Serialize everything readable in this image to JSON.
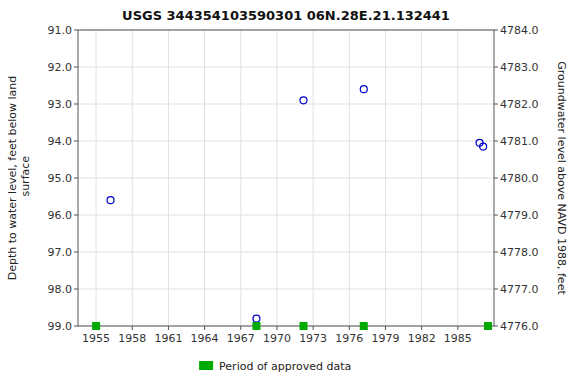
{
  "chart_data": {
    "type": "scatter",
    "title": "USGS 344354103590301 06N.28E.21.132441",
    "y_label": "Depth to water level, feet below land\n surface",
    "y2_label": "Groundwater level above NAVD 1988, feet",
    "xlim": [
      1953.5,
      1988.0
    ],
    "xticks": [
      1955,
      1958,
      1961,
      1964,
      1967,
      1970,
      1973,
      1976,
      1979,
      1982,
      1985
    ],
    "ylim": [
      99.0,
      91.0
    ],
    "yticks": [
      {
        "value": 91.0,
        "label": "91.0"
      },
      {
        "value": 92.0,
        "label": "92.0"
      },
      {
        "value": 93.0,
        "label": "93.0"
      },
      {
        "value": 94.0,
        "label": "94.0"
      },
      {
        "value": 95.0,
        "label": "95.0"
      },
      {
        "value": 96.0,
        "label": "96.0"
      },
      {
        "value": 97.0,
        "label": "97.0"
      },
      {
        "value": 98.0,
        "label": "98.0"
      },
      {
        "value": 99.0,
        "label": "99.0"
      }
    ],
    "y2lim": [
      4776.0,
      4784.0
    ],
    "y2ticks": [
      {
        "value": 4784.0,
        "label": "4784.0"
      },
      {
        "value": 4783.0,
        "label": "4783.0"
      },
      {
        "value": 4782.0,
        "label": "4782.0"
      },
      {
        "value": 4781.0,
        "label": "4781.0"
      },
      {
        "value": 4780.0,
        "label": "4780.0"
      },
      {
        "value": 4779.0,
        "label": "4779.0"
      },
      {
        "value": 4778.0,
        "label": "4778.0"
      },
      {
        "value": 4777.0,
        "label": "4777.0"
      },
      {
        "value": 4776.0,
        "label": "4776.0"
      }
    ],
    "grid": true,
    "legend": "bottom",
    "series": [
      {
        "color": "#0000cc",
        "marker": "circle",
        "x": [
          1956.2,
          1968.3,
          1972.2,
          1977.2,
          1986.8,
          1987.1
        ],
        "values": [
          95.6,
          98.8,
          92.9,
          92.6,
          94.05,
          94.15
        ]
      },
      {
        "name": "Period of approved data",
        "color": "#00aa00",
        "marker": "square",
        "x": [
          1955.0,
          1968.3,
          1972.2,
          1977.2,
          1987.5
        ],
        "values": [
          99.0,
          99.0,
          99.0,
          99.0,
          99.0
        ]
      }
    ]
  }
}
